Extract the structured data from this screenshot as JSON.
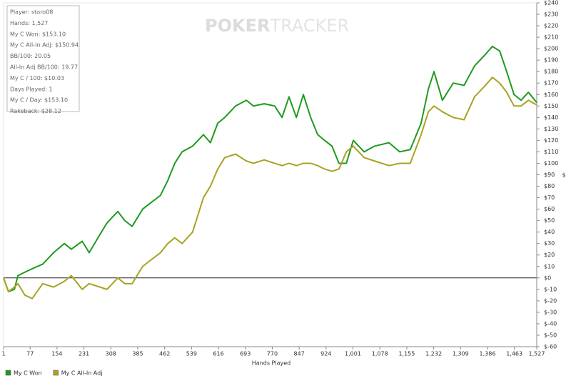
{
  "chart_data": {
    "type": "line",
    "watermark": [
      "POKER",
      "TRACKER"
    ],
    "info_box": [
      "Player: storo08",
      "Hands: 1,527",
      "My C Won: $153.10",
      "My C All-In Adj: $150.94",
      "BB/100: 20.05",
      "All-In Adj BB/100: 19.77",
      "My C / 100: $10.03",
      "Days Played: 1",
      "My C / Day: $153.10",
      "Rakeback: $28.12"
    ],
    "xlabel": "Hands Played",
    "ylabel": "$",
    "x": [
      1,
      15,
      32,
      42,
      62,
      83,
      113,
      144,
      175,
      195,
      226,
      246,
      277,
      297,
      328,
      348,
      369,
      399,
      420,
      450,
      471,
      491,
      512,
      542,
      573,
      593,
      614,
      634,
      665,
      696,
      716,
      747,
      777,
      798,
      818,
      839,
      859,
      880,
      900,
      920,
      941,
      961,
      982,
      1002,
      1033,
      1063,
      1104,
      1135,
      1165,
      1196,
      1217,
      1233,
      1257,
      1288,
      1319,
      1349,
      1380,
      1400,
      1421,
      1441,
      1462,
      1482,
      1503,
      1527
    ],
    "series": [
      {
        "name": "My C Won",
        "color": "#1f9a1f",
        "values": [
          0,
          -12,
          -10,
          2,
          5,
          8,
          12,
          22,
          30,
          25,
          32,
          22,
          38,
          48,
          58,
          50,
          45,
          60,
          65,
          72,
          85,
          100,
          110,
          115,
          125,
          118,
          135,
          140,
          150,
          155,
          150,
          152,
          150,
          140,
          158,
          140,
          160,
          140,
          125,
          120,
          115,
          100,
          100,
          120,
          110,
          115,
          118,
          110,
          112,
          135,
          165,
          180,
          155,
          170,
          168,
          185,
          195,
          202,
          198,
          180,
          160,
          155,
          162,
          153.1
        ]
      },
      {
        "name": "My C All-In Adj",
        "color": "#a9a222",
        "values": [
          0,
          -12,
          -8,
          -5,
          -15,
          -18,
          -5,
          -8,
          -3,
          2,
          -10,
          -5,
          -8,
          -10,
          0,
          -5,
          -5,
          10,
          15,
          22,
          30,
          35,
          30,
          40,
          70,
          80,
          95,
          105,
          108,
          102,
          100,
          103,
          100,
          98,
          100,
          98,
          100,
          100,
          98,
          95,
          93,
          95,
          110,
          115,
          105,
          102,
          98,
          100,
          100,
          125,
          145,
          150,
          145,
          140,
          138,
          158,
          168,
          175,
          170,
          162,
          150,
          150,
          155,
          150.94
        ]
      }
    ],
    "xlim": [
      1,
      1527
    ],
    "xticks": [
      1,
      77,
      154,
      231,
      308,
      385,
      462,
      539,
      616,
      693,
      770,
      847,
      924,
      {
        "value": 1001,
        "label": "1,001"
      },
      {
        "value": 1078,
        "label": "1,078"
      },
      {
        "value": 1155,
        "label": "1,155"
      },
      {
        "value": 1232,
        "label": "1,232"
      },
      {
        "value": 1309,
        "label": "1,309"
      },
      {
        "value": 1386,
        "label": "1,386"
      },
      {
        "value": 1463,
        "label": "1,463"
      },
      {
        "value": 1527,
        "label": "1,527"
      }
    ],
    "ylim": [
      -60,
      240
    ],
    "yticks": [
      {
        "value": -60,
        "label": "$-60"
      },
      {
        "value": -50,
        "label": "$-50"
      },
      {
        "value": -40,
        "label": "$-40"
      },
      {
        "value": -30,
        "label": "$-30"
      },
      {
        "value": -20,
        "label": "$-20"
      },
      {
        "value": -10,
        "label": "$-10"
      },
      {
        "value": 0,
        "label": "$0"
      },
      {
        "value": 10,
        "label": "$10"
      },
      {
        "value": 20,
        "label": "$20"
      },
      {
        "value": 30,
        "label": "$30"
      },
      {
        "value": 40,
        "label": "$40"
      },
      {
        "value": 50,
        "label": "$50"
      },
      {
        "value": 60,
        "label": "$60"
      },
      {
        "value": 70,
        "label": "$70"
      },
      {
        "value": 80,
        "label": "$80"
      },
      {
        "value": 90,
        "label": "$90"
      },
      {
        "value": 100,
        "label": "$100"
      },
      {
        "value": 110,
        "label": "$110"
      },
      {
        "value": 120,
        "label": "$120"
      },
      {
        "value": 130,
        "label": "$130"
      },
      {
        "value": 140,
        "label": "$140"
      },
      {
        "value": 150,
        "label": "$150"
      },
      {
        "value": 160,
        "label": "$160"
      },
      {
        "value": 170,
        "label": "$170"
      },
      {
        "value": 180,
        "label": "$180"
      },
      {
        "value": 190,
        "label": "$190"
      },
      {
        "value": 200,
        "label": "$200"
      },
      {
        "value": 210,
        "label": "$210"
      },
      {
        "value": 220,
        "label": "$220"
      },
      {
        "value": 230,
        "label": "$230"
      },
      {
        "value": 240,
        "label": "$240"
      }
    ],
    "zero_line": true,
    "legend": "bottom-left"
  }
}
